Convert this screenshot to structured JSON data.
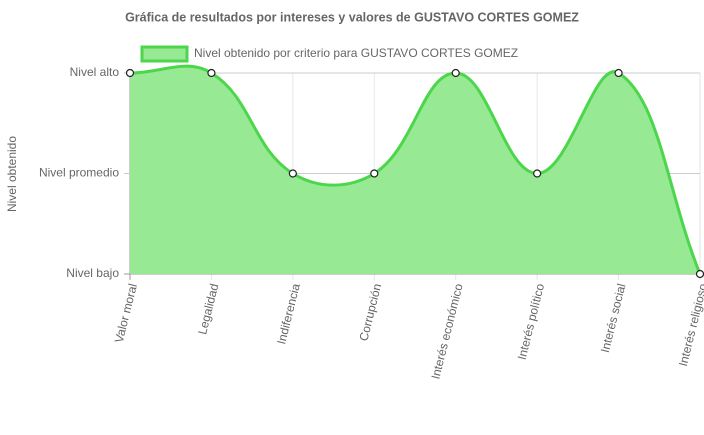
{
  "chart_data": {
    "type": "area",
    "title": "Gráfica de resultados por intereses y valores de GUSTAVO CORTES GOMEZ",
    "y_label": "Nivel obtenido",
    "categories": [
      "Valor moral",
      "Legalidad",
      "Indiferencia",
      "Corrupción",
      "Interés económico",
      "Interés político",
      "Interés social",
      "Interés religioso"
    ],
    "series": [
      {
        "name": "Nivel obtenido por criterio para GUSTAVO CORTES GOMEZ",
        "color": "#4cd64c",
        "fill": "#98e994",
        "values": [
          3,
          3,
          2,
          2,
          3,
          2,
          3,
          1
        ]
      }
    ],
    "ylim": [
      1,
      3
    ],
    "yticks": [
      {
        "value": 1,
        "label": "Nivel bajo"
      },
      {
        "value": 2,
        "label": "Nivel promedio"
      },
      {
        "value": 3,
        "label": "Nivel alto"
      }
    ],
    "grid": true,
    "legend": "top"
  }
}
